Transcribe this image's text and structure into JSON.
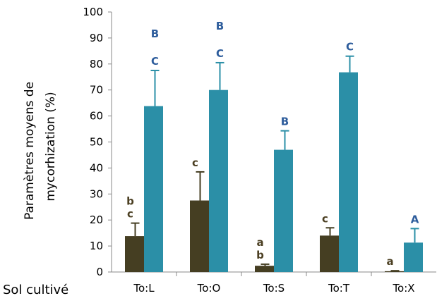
{
  "chart_data": {
    "type": "bar",
    "ylabel_lines": [
      "Paramètres moyens  de",
      "mycorhization (%)"
    ],
    "ylim": [
      0,
      100
    ],
    "yticks": [
      "0",
      "10",
      "20",
      "30",
      "40",
      "50",
      "60",
      "70",
      "80",
      "90",
      "100"
    ],
    "grid": false,
    "categories": [
      "To:L",
      "To:O",
      "To:S",
      "To:T",
      "To:X"
    ],
    "series": [
      {
        "color": "#453e22",
        "values": [
          13.8,
          27.5,
          2.4,
          14.0,
          0.3
        ],
        "errors": [
          5.0,
          11.0,
          0.6,
          3.0,
          0.2
        ],
        "annotations": [
          [
            "b",
            "c"
          ],
          [
            "c"
          ],
          [
            "a",
            "b"
          ],
          [
            "c"
          ],
          [
            "a"
          ]
        ]
      },
      {
        "color": "#2b8fa7",
        "values": [
          63.8,
          70.0,
          47.0,
          76.8,
          11.3
        ],
        "errors": [
          13.7,
          10.5,
          7.3,
          6.2,
          5.4
        ],
        "annotations": [
          [
            "B",
            "C"
          ],
          [
            "B",
            "C"
          ],
          [
            "B"
          ],
          [
            "C"
          ],
          [
            "A"
          ]
        ]
      }
    ],
    "annotation_colors": {
      "dark": "#4b3f22",
      "blue": "#2e5d9c"
    }
  },
  "footer": "Sol cultivé"
}
